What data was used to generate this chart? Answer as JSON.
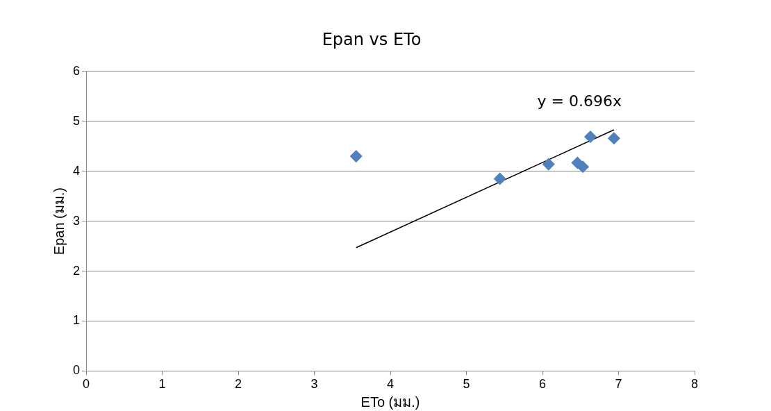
{
  "chart_data": {
    "type": "scatter",
    "title": "Epan vs ETo",
    "xlabel": "ETo (มม.)",
    "ylabel": "Epan (มม.)",
    "series": [
      {
        "type": "scatter",
        "color": "#4f81bd",
        "marker": "diamond",
        "x": [
          3.55,
          5.44,
          6.08,
          6.46,
          6.53,
          6.63,
          6.94
        ],
        "values": [
          4.3,
          3.85,
          4.14,
          4.17,
          4.09,
          4.69,
          4.66
        ]
      },
      {
        "type": "line",
        "color": "#000000",
        "marker": "none",
        "line_style": "solid",
        "x": [
          3.55,
          6.94
        ],
        "values": [
          2.47,
          4.83
        ]
      }
    ],
    "annotations": [
      "y = 0.696x"
    ],
    "xlim": [
      0,
      8
    ],
    "xticks": [
      0,
      1,
      2,
      3,
      4,
      5,
      6,
      7,
      8
    ],
    "ylim": [
      0,
      6
    ],
    "yticks": [
      0,
      1,
      2,
      3,
      4,
      5,
      6
    ],
    "grid": "y",
    "legend": false
  }
}
